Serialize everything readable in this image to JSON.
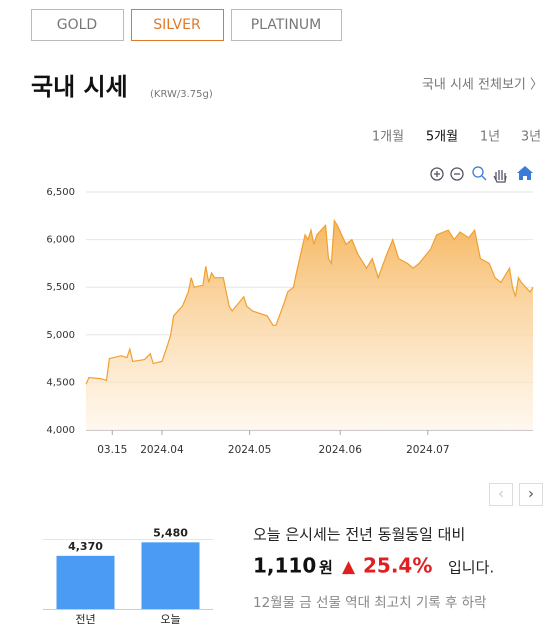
{
  "tabs": [
    "GOLD",
    "SILVER",
    "PLATINUM"
  ],
  "header": {
    "title": "국내 시세",
    "unit": "(KRW/3.75g)",
    "link": "국내 시세 전체보기 〉"
  },
  "periods": [
    "1개월",
    "5개월",
    "1년",
    "3년"
  ],
  "nav": [
    "‹",
    "›"
  ],
  "summary": {
    "line1": "오늘 은시세는 전년 동월동일 대비",
    "diff": "1,110",
    "unit": "원",
    "arrow": "▲",
    "rate": "25.4%",
    "tail": "입니다.",
    "note": "12월물 금 선물 역대 최고치 기록 후 하락"
  },
  "chart_data": [
    {
      "type": "area",
      "color": "#f0a030",
      "grid": true,
      "x": [
        "2024-03-06",
        "2024-03-07",
        "2024-03-11",
        "2024-03-13",
        "2024-03-14",
        "2024-03-18",
        "2024-03-20",
        "2024-03-21",
        "2024-03-22",
        "2024-03-26",
        "2024-03-28",
        "2024-03-29",
        "2024-04-01",
        "2024-04-03",
        "2024-04-04",
        "2024-04-05",
        "2024-04-08",
        "2024-04-10",
        "2024-04-11",
        "2024-04-12",
        "2024-04-15",
        "2024-04-16",
        "2024-04-17",
        "2024-04-18",
        "2024-04-19",
        "2024-04-22",
        "2024-04-23",
        "2024-04-24",
        "2024-04-25",
        "2024-04-29",
        "2024-04-30",
        "2024-05-02",
        "2024-05-07",
        "2024-05-09",
        "2024-05-10",
        "2024-05-13",
        "2024-05-14",
        "2024-05-16",
        "2024-05-17",
        "2024-05-20",
        "2024-05-21",
        "2024-05-22",
        "2024-05-23",
        "2024-05-24",
        "2024-05-27",
        "2024-05-28",
        "2024-05-29",
        "2024-05-30",
        "2024-05-31",
        "2024-06-03",
        "2024-06-05",
        "2024-06-07",
        "2024-06-10",
        "2024-06-12",
        "2024-06-14",
        "2024-06-17",
        "2024-06-19",
        "2024-06-21",
        "2024-06-24",
        "2024-06-26",
        "2024-06-28",
        "2024-07-02",
        "2024-07-04",
        "2024-07-08",
        "2024-07-10",
        "2024-07-12",
        "2024-07-15",
        "2024-07-17",
        "2024-07-19",
        "2024-07-22",
        "2024-07-24",
        "2024-07-26",
        "2024-07-29",
        "2024-07-30",
        "2024-07-31",
        "2024-08-01",
        "2024-08-02",
        "2024-08-05",
        "2024-08-06"
      ],
      "values": [
        4480,
        4550,
        4540,
        4520,
        4750,
        4780,
        4760,
        4850,
        4720,
        4740,
        4800,
        4700,
        4720,
        4900,
        5000,
        5200,
        5300,
        5450,
        5600,
        5500,
        5520,
        5720,
        5550,
        5650,
        5600,
        5600,
        5450,
        5300,
        5250,
        5400,
        5300,
        5250,
        5200,
        5100,
        5100,
        5350,
        5450,
        5500,
        5650,
        6050,
        6000,
        6100,
        5950,
        6050,
        6150,
        5800,
        5750,
        6200,
        6150,
        5950,
        6000,
        5850,
        5700,
        5800,
        5600,
        5850,
        6000,
        5800,
        5750,
        5700,
        5750,
        5900,
        6050,
        6100,
        6000,
        6080,
        6020,
        6100,
        5800,
        5750,
        5600,
        5550,
        5700,
        5500,
        5400,
        5600,
        5550,
        5450,
        5500
      ],
      "xlim": [
        "2024-03-06",
        "2024-08-06"
      ],
      "xticks": [
        {
          "value": "2024-03-15",
          "label": "03.15"
        },
        {
          "value": "2024-04-01",
          "label": "2024.04"
        },
        {
          "value": "2024-05-01",
          "label": "2024.05"
        },
        {
          "value": "2024-06-01",
          "label": "2024.06"
        },
        {
          "value": "2024-07-01",
          "label": "2024.07"
        }
      ],
      "ylim": [
        4000,
        6500
      ],
      "yticks": [
        {
          "value": 4000,
          "label": "4,000"
        },
        {
          "value": 4500,
          "label": "4,500"
        },
        {
          "value": 5000,
          "label": "5,000"
        },
        {
          "value": 5500,
          "label": "5,500"
        },
        {
          "value": 6000,
          "label": "6,000"
        },
        {
          "value": 6500,
          "label": "6,500"
        }
      ]
    },
    {
      "type": "bar",
      "color": "#4b9bf5",
      "categories": [
        "전년",
        "오늘"
      ],
      "values": [
        4370,
        5480
      ],
      "value_labels": [
        "4,370",
        "5,480"
      ],
      "ylim": [
        0,
        6000
      ]
    }
  ]
}
